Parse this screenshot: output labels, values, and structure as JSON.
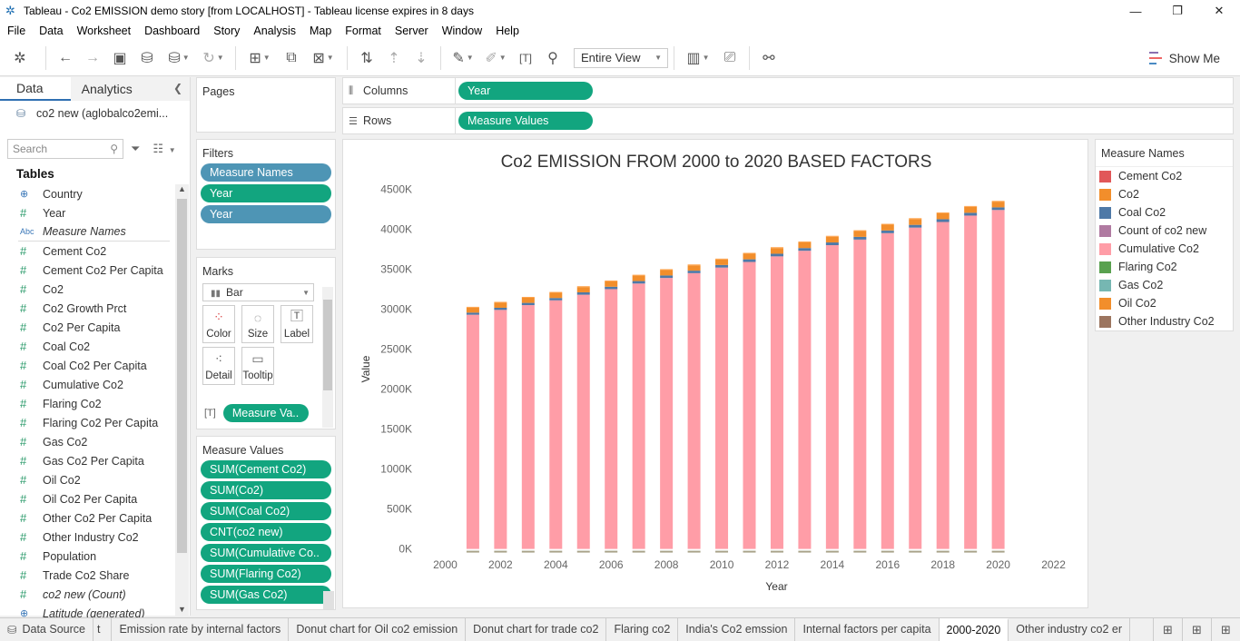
{
  "window": {
    "title": "Tableau - Co2 EMISSION demo story [from LOCALHOST] - Tableau license expires in 8 days",
    "minimize": "—",
    "maximize": "❐",
    "close": "✕"
  },
  "menu": [
    "File",
    "Data",
    "Worksheet",
    "Dashboard",
    "Story",
    "Analysis",
    "Map",
    "Format",
    "Server",
    "Window",
    "Help"
  ],
  "toolbar": {
    "fit": "Entire View",
    "show_me": "Show Me"
  },
  "data_pane": {
    "tab_data": "Data",
    "tab_analytics": "Analytics",
    "datasource": "co2 new (aglobalco2emi...",
    "search_placeholder": "Search",
    "tables_label": "Tables",
    "fields": [
      {
        "type": "geo",
        "glyph": "⊕",
        "name": "Country"
      },
      {
        "type": "num",
        "glyph": "#",
        "name": "Year"
      },
      {
        "type": "abc",
        "glyph": "Abc",
        "name": "Measure Names",
        "italic": true
      },
      {
        "type": "num",
        "glyph": "#",
        "name": "Cement Co2"
      },
      {
        "type": "num",
        "glyph": "#",
        "name": "Cement Co2 Per Capita"
      },
      {
        "type": "num",
        "glyph": "#",
        "name": "Co2"
      },
      {
        "type": "num",
        "glyph": "#",
        "name": "Co2 Growth Prct"
      },
      {
        "type": "num",
        "glyph": "#",
        "name": "Co2 Per Capita"
      },
      {
        "type": "num",
        "glyph": "#",
        "name": "Coal Co2"
      },
      {
        "type": "num",
        "glyph": "#",
        "name": "Coal Co2 Per Capita"
      },
      {
        "type": "num",
        "glyph": "#",
        "name": "Cumulative Co2"
      },
      {
        "type": "num",
        "glyph": "#",
        "name": "Flaring Co2"
      },
      {
        "type": "num",
        "glyph": "#",
        "name": "Flaring Co2 Per Capita"
      },
      {
        "type": "num",
        "glyph": "#",
        "name": "Gas Co2"
      },
      {
        "type": "num",
        "glyph": "#",
        "name": "Gas Co2 Per Capita"
      },
      {
        "type": "num",
        "glyph": "#",
        "name": "Oil Co2"
      },
      {
        "type": "num",
        "glyph": "#",
        "name": "Oil Co2 Per Capita"
      },
      {
        "type": "num",
        "glyph": "#",
        "name": "Other Co2 Per Capita"
      },
      {
        "type": "num",
        "glyph": "#",
        "name": "Other Industry Co2"
      },
      {
        "type": "num",
        "glyph": "#",
        "name": "Population"
      },
      {
        "type": "num",
        "glyph": "#",
        "name": "Trade Co2 Share"
      },
      {
        "type": "num",
        "glyph": "#",
        "name": "co2 new (Count)",
        "italic": true
      },
      {
        "type": "geo",
        "glyph": "⊕",
        "name": "Latitude (generated)",
        "italic": true
      }
    ]
  },
  "pages": {
    "label": "Pages"
  },
  "filters": {
    "label": "Filters",
    "pills": [
      {
        "text": "Measure Names",
        "color": "blue"
      },
      {
        "text": "Year",
        "color": "green"
      },
      {
        "text": "Year",
        "color": "blue"
      }
    ]
  },
  "marks": {
    "label": "Marks",
    "type": "Bar",
    "buttons": [
      {
        "label": "Color",
        "icon": "color-icon"
      },
      {
        "label": "Size",
        "icon": "size-icon"
      },
      {
        "label": "Label",
        "icon": "label-icon"
      },
      {
        "label": "Detail",
        "icon": "detail-icon"
      },
      {
        "label": "Tooltip",
        "icon": "tooltip-icon"
      }
    ],
    "pill": "Measure Va.."
  },
  "measure_values": {
    "label": "Measure Values",
    "pills": [
      "SUM(Cement Co2)",
      "SUM(Co2)",
      "SUM(Coal Co2)",
      "CNT(co2 new)",
      "SUM(Cumulative Co..",
      "SUM(Flaring Co2)",
      "SUM(Gas Co2)"
    ]
  },
  "shelves": {
    "columns_label": "Columns",
    "columns_pill": "Year",
    "rows_label": "Rows",
    "rows_pill": "Measure Values"
  },
  "chart_data": {
    "type": "bar",
    "title": "Co2 EMISSION FROM 2000 to 2020 BASED FACTORS",
    "xlabel": "Year",
    "ylabel": "Value",
    "xlim": [
      1999,
      2023
    ],
    "xticks": [
      2000,
      2002,
      2004,
      2006,
      2008,
      2010,
      2012,
      2014,
      2016,
      2018,
      2020,
      2022
    ],
    "ylim": [
      -50000,
      4550000
    ],
    "yticks": [
      0,
      500000,
      1000000,
      1500000,
      2000000,
      2500000,
      3000000,
      3500000,
      4000000,
      4500000
    ],
    "ytick_labels": [
      "0K",
      "500K",
      "1000K",
      "1500K",
      "2000K",
      "2500K",
      "3000K",
      "3500K",
      "4000K",
      "4500K"
    ],
    "grid": false,
    "legend_position": "right",
    "categories": [
      2001,
      2002,
      2003,
      2004,
      2005,
      2006,
      2007,
      2008,
      2009,
      2010,
      2011,
      2012,
      2013,
      2014,
      2015,
      2016,
      2017,
      2018,
      2019,
      2020
    ],
    "series": [
      {
        "name": "Cumulative Co2",
        "color": "#FF9DA7",
        "values": [
          2930000,
          2990000,
          3050000,
          3110000,
          3180000,
          3250000,
          3320000,
          3390000,
          3450000,
          3520000,
          3590000,
          3660000,
          3730000,
          3800000,
          3870000,
          3950000,
          4020000,
          4090000,
          4170000,
          4240000
        ]
      },
      {
        "name": "Coal Co2",
        "color": "#4E79A7",
        "values": [
          26000,
          27000,
          28000,
          29000,
          30000,
          30000,
          31000,
          31000,
          31000,
          32000,
          33000,
          33000,
          34000,
          34000,
          34000,
          34000,
          34000,
          35000,
          35000,
          33000
        ]
      },
      {
        "name": "Co2",
        "color": "#F28E2B",
        "values": [
          62000,
          63000,
          64000,
          65000,
          66000,
          67000,
          68000,
          68000,
          67000,
          69000,
          70000,
          71000,
          72000,
          72000,
          72000,
          72000,
          73000,
          74000,
          74000,
          71000
        ]
      },
      {
        "name": "Oil Co2",
        "color": "#FFA54F",
        "values": [
          11000,
          11000,
          11000,
          11000,
          11000,
          11000,
          11000,
          11000,
          11000,
          11000,
          11000,
          11000,
          11000,
          11000,
          11000,
          11000,
          11000,
          11000,
          11000,
          10000
        ]
      }
    ],
    "legend_title": "Measure Names",
    "legend": [
      {
        "name": "Cement Co2",
        "color": "#E15759"
      },
      {
        "name": "Co2",
        "color": "#F28E2B"
      },
      {
        "name": "Coal Co2",
        "color": "#4E79A7"
      },
      {
        "name": "Count of co2 new",
        "color": "#B07AA1"
      },
      {
        "name": "Cumulative Co2",
        "color": "#FF9DA7"
      },
      {
        "name": "Flaring Co2",
        "color": "#59A14F"
      },
      {
        "name": "Gas Co2",
        "color": "#76B7B2"
      },
      {
        "name": "Oil Co2",
        "color": "#F28E2B"
      },
      {
        "name": "Other Industry Co2",
        "color": "#9C755F"
      }
    ]
  },
  "sheet_tabs": {
    "datasource": "Data Source",
    "tabs": [
      "t",
      "Emission rate by internal factors",
      "Donut chart for Oil co2 emission",
      "Donut chart for trade co2",
      "Flaring co2",
      "India's Co2 emssion",
      "Internal factors per capita",
      "2000-2020",
      "Other industry co2 er"
    ],
    "active": "2000-2020"
  }
}
